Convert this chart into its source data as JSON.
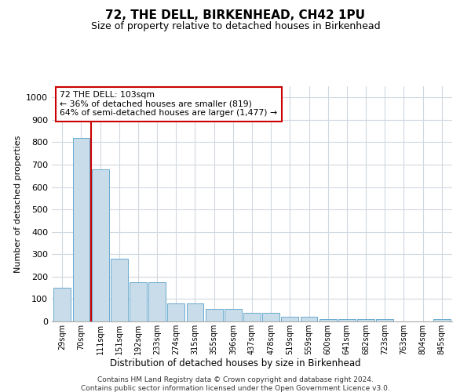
{
  "title1": "72, THE DELL, BIRKENHEAD, CH42 1PU",
  "title2": "Size of property relative to detached houses in Birkenhead",
  "xlabel": "Distribution of detached houses by size in Birkenhead",
  "ylabel": "Number of detached properties",
  "bar_labels": [
    "29sqm",
    "70sqm",
    "111sqm",
    "151sqm",
    "192sqm",
    "233sqm",
    "274sqm",
    "315sqm",
    "355sqm",
    "396sqm",
    "437sqm",
    "478sqm",
    "519sqm",
    "559sqm",
    "600sqm",
    "641sqm",
    "682sqm",
    "723sqm",
    "763sqm",
    "804sqm",
    "845sqm"
  ],
  "bar_values": [
    150,
    820,
    680,
    280,
    175,
    175,
    80,
    80,
    55,
    55,
    40,
    40,
    20,
    20,
    10,
    10,
    10,
    10,
    0,
    0,
    10
  ],
  "bar_color": "#c8dcea",
  "bar_edge_color": "#6aaacf",
  "vline_color": "#cc0000",
  "annotation_text": "72 THE DELL: 103sqm\n← 36% of detached houses are smaller (819)\n64% of semi-detached houses are larger (1,477) →",
  "annotation_box_color": "#ffffff",
  "annotation_box_edge": "#cc0000",
  "ylim": [
    0,
    1050
  ],
  "yticks": [
    0,
    100,
    200,
    300,
    400,
    500,
    600,
    700,
    800,
    900,
    1000
  ],
  "footer1": "Contains HM Land Registry data © Crown copyright and database right 2024.",
  "footer2": "Contains public sector information licensed under the Open Government Licence v3.0.",
  "bg_color": "#ffffff",
  "grid_color": "#d0d8e0"
}
